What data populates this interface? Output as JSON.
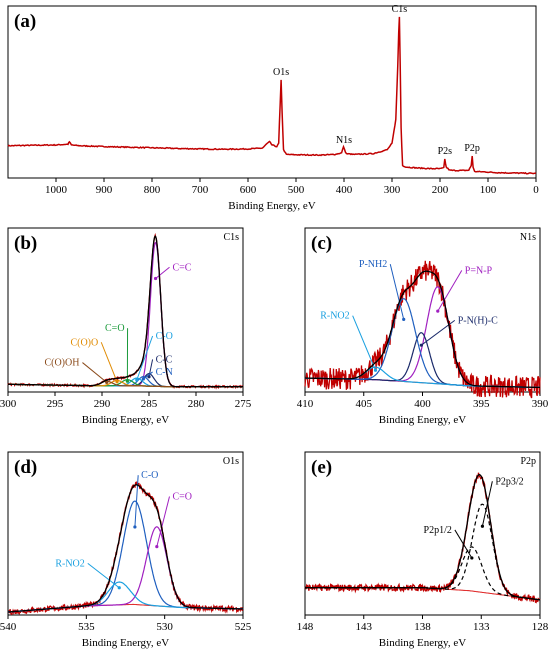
{
  "figure": {
    "colors": {
      "frame": "#000000",
      "spectrum": "#c00000",
      "baseline": "#e03030",
      "envelope": "#000000",
      "violet": "#a020c0",
      "blue": "#1f5fbf",
      "navy": "#1a2a6a",
      "cyan": "#1aa0e0",
      "green": "#1a9a3a",
      "orange": "#e08a00",
      "brown": "#8a4a1a",
      "dash": "#000000"
    }
  },
  "chart_data": [
    {
      "id": "a",
      "panel_label": "(a)",
      "type": "line",
      "xlabel": "Binding Energy, eV",
      "xlim": [
        1100,
        0
      ],
      "x_ticks": [
        1000,
        900,
        800,
        700,
        600,
        500,
        400,
        300,
        200,
        100,
        0
      ],
      "peak_labels": [
        {
          "text": "O1s",
          "x": 531
        },
        {
          "text": "N1s",
          "x": 400
        },
        {
          "text": "C1s",
          "x": 284.6
        },
        {
          "text": "P2s",
          "x": 190
        },
        {
          "text": "P2p",
          "x": 133
        }
      ],
      "series": [
        {
          "style": "spectrum",
          "x": [
            1100,
            1050,
            1000,
            975,
            972,
            968,
            950,
            900,
            850,
            800,
            750,
            700,
            650,
            600,
            570,
            560,
            555,
            550,
            540,
            536,
            533,
            531,
            529,
            526,
            520,
            500,
            450,
            420,
            405,
            401,
            399,
            395,
            380,
            340,
            310,
            300,
            292,
            288,
            286,
            284.6,
            283,
            281,
            278,
            270,
            250,
            220,
            200,
            192,
            190,
            187,
            180,
            160,
            140,
            135,
            133,
            131,
            128,
            110,
            80,
            40,
            0
          ],
          "y": [
            0.185,
            0.188,
            0.19,
            0.195,
            0.21,
            0.19,
            0.185,
            0.18,
            0.176,
            0.172,
            0.168,
            0.165,
            0.163,
            0.165,
            0.17,
            0.2,
            0.21,
            0.19,
            0.18,
            0.2,
            0.45,
            0.6,
            0.4,
            0.16,
            0.13,
            0.128,
            0.126,
            0.13,
            0.14,
            0.18,
            0.16,
            0.135,
            0.13,
            0.135,
            0.16,
            0.2,
            0.35,
            0.7,
            0.9,
            1.0,
            0.7,
            0.3,
            0.06,
            0.05,
            0.045,
            0.04,
            0.04,
            0.045,
            0.1,
            0.05,
            0.03,
            0.028,
            0.03,
            0.06,
            0.12,
            0.05,
            0.022,
            0.02,
            0.015,
            0.012,
            0.01
          ]
        }
      ]
    },
    {
      "id": "b",
      "panel_label": "(b)",
      "corner_label": "C1s",
      "type": "line",
      "xlabel": "Binding Energy, eV",
      "xlim": [
        300,
        275
      ],
      "x_ticks": [
        300,
        295,
        290,
        285,
        280,
        275
      ],
      "background": {
        "x": [
          300,
          290,
          286,
          283,
          275
        ],
        "y": [
          0.03,
          0.02,
          0.02,
          0.015,
          0.015
        ]
      },
      "components": [
        {
          "name": "C=C",
          "color": "violet",
          "center": 284.3,
          "width": 0.55,
          "height": 0.92,
          "label_x": 282.5,
          "label_y": 0.76
        },
        {
          "name": "C-C",
          "color": "navy",
          "center": 285.0,
          "width": 0.55,
          "height": 0.08,
          "label_x": 284.3,
          "label_y": 0.17
        },
        {
          "name": "C-N",
          "color": "blue",
          "center": 285.6,
          "width": 0.55,
          "height": 0.06,
          "label_x": 284.3,
          "label_y": 0.09
        },
        {
          "name": "C-O",
          "color": "cyan",
          "center": 286.3,
          "width": 0.6,
          "height": 0.05,
          "label_x": 284.3,
          "label_y": 0.32
        },
        {
          "name": "C=O",
          "color": "green",
          "center": 287.3,
          "width": 0.6,
          "height": 0.04,
          "label_x": 287.6,
          "label_y": 0.37
        },
        {
          "name": "C(O)O",
          "color": "orange",
          "center": 288.4,
          "width": 0.6,
          "height": 0.035,
          "label_x": 290.4,
          "label_y": 0.28
        },
        {
          "name": "C(O)OH",
          "color": "brown",
          "center": 289.5,
          "width": 0.6,
          "height": 0.03,
          "label_x": 292.4,
          "label_y": 0.15
        }
      ],
      "noise": 0.006
    },
    {
      "id": "c",
      "panel_label": "(c)",
      "corner_label": "N1s",
      "type": "line",
      "xlabel": "Binding Energy, eV",
      "xlim": [
        410,
        390
      ],
      "x_ticks": [
        410,
        405,
        400,
        395,
        390
      ],
      "background": {
        "x": [
          410,
          404,
          400,
          396,
          390
        ],
        "y": [
          0.07,
          0.06,
          0.04,
          0.02,
          0.01
        ]
      },
      "components": [
        {
          "name": "P=N-P",
          "color": "violet",
          "center": 398.7,
          "width": 0.95,
          "height": 0.62,
          "label_x": 396.4,
          "label_y": 0.74
        },
        {
          "name": "P-N(H)-C",
          "color": "navy",
          "center": 400.1,
          "width": 0.7,
          "height": 0.32,
          "label_x": 397.0,
          "label_y": 0.42
        },
        {
          "name": "P-NH2",
          "color": "blue",
          "center": 401.6,
          "width": 1.0,
          "height": 0.53,
          "label_x": 403.0,
          "label_y": 0.78
        },
        {
          "name": "R-NO2",
          "color": "cyan",
          "center": 404.0,
          "width": 0.8,
          "height": 0.08,
          "label_x": 406.2,
          "label_y": 0.45
        }
      ],
      "noise": 0.07
    },
    {
      "id": "d",
      "panel_label": "(d)",
      "corner_label": "O1s",
      "type": "line",
      "xlabel": "Binding Energy, eV",
      "xlim": [
        540,
        525
      ],
      "x_ticks": [
        540,
        535,
        530,
        525
      ],
      "background": {
        "x": [
          540,
          535,
          532,
          529,
          525
        ],
        "y": [
          0.0,
          0.04,
          0.05,
          0.03,
          0.02
        ]
      },
      "components": [
        {
          "name": "C-O",
          "color": "blue",
          "center": 531.9,
          "width": 0.75,
          "height": 0.68,
          "label_x": 531.5,
          "label_y": 0.88
        },
        {
          "name": "C=O",
          "color": "violet",
          "center": 530.5,
          "width": 0.65,
          "height": 0.52,
          "label_x": 529.5,
          "label_y": 0.74
        },
        {
          "name": "R-NO2",
          "color": "cyan",
          "center": 532.9,
          "width": 0.7,
          "height": 0.15,
          "label_x": 535.1,
          "label_y": 0.3
        }
      ],
      "noise": 0.018
    },
    {
      "id": "e",
      "panel_label": "(e)",
      "corner_label": "P2p",
      "type": "line",
      "xlabel": "Binding Energy, eV",
      "xlim": [
        148,
        128
      ],
      "x_ticks": [
        148,
        143,
        138,
        133,
        128
      ],
      "background": {
        "x": [
          148,
          138,
          134,
          130,
          128
        ],
        "y": [
          0.16,
          0.16,
          0.14,
          0.1,
          0.08
        ]
      },
      "components": [
        {
          "name": "P2p3/2",
          "color": "dash",
          "center": 132.9,
          "width": 0.85,
          "height": 0.58,
          "dashed": true,
          "label_x": 131.8,
          "label_y": 0.84
        },
        {
          "name": "P2p1/2",
          "color": "dash",
          "center": 133.8,
          "width": 0.85,
          "height": 0.29,
          "dashed": true,
          "label_x": 135.5,
          "label_y": 0.52
        }
      ],
      "noise": 0.022
    }
  ]
}
